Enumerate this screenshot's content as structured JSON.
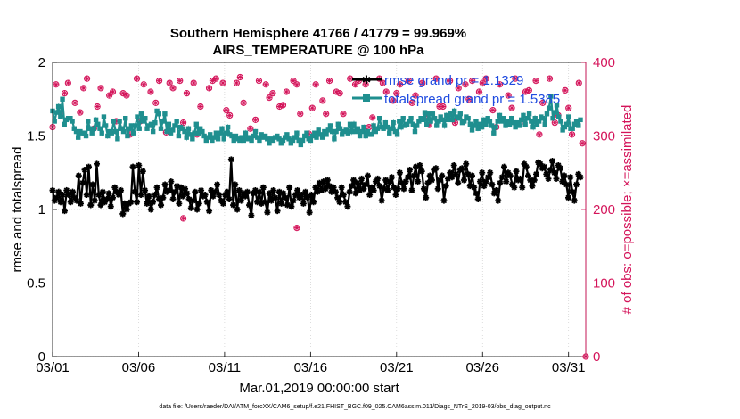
{
  "chart_data": {
    "type": "line",
    "title": "Southern Hemisphere 41766 / 41779 = 99.969%",
    "subtitle": "AIRS_TEMPERATURE @ 100 hPa",
    "xlabel": "Mar.01,2019 00:00:00 start",
    "ylabel_left": "rmse and totalspread",
    "ylabel_right": "# of obs: o=possible; ×=assimilated",
    "footnote": "data file: /Users/raeder/DAI/ATM_forcXX/CAM6_setup/f.e21.FHIST_BGC.f09_025.CAM6assim.011/Diags_NTrS_2019-03/obs_diag_output.nc",
    "x_tick_labels": [
      "03/01",
      "03/06",
      "03/11",
      "03/16",
      "03/21",
      "03/26",
      "03/31"
    ],
    "x_tick_days": [
      1,
      6,
      11,
      16,
      21,
      26,
      31
    ],
    "xlim_days": [
      1,
      32
    ],
    "ylim_left": [
      0,
      2
    ],
    "y_ticks_left": [
      "0",
      "0.5",
      "1",
      "1.5",
      "2"
    ],
    "ylim_right": [
      0,
      400
    ],
    "y_ticks_right": [
      "0",
      "100",
      "200",
      "300",
      "400"
    ],
    "grid": true,
    "legend_position": "top-right",
    "colors": {
      "rmse": "#000000",
      "totalspread": "#1f8f8f",
      "obs": "#d4145a",
      "legend_text": "#1f4be0",
      "right_axis": "#d4145a"
    },
    "series": [
      {
        "name": "rmse grand pr = 1.1329",
        "axis": "left",
        "values": [
          1.13,
          1.06,
          1.08,
          1.12,
          1.05,
          1.1,
          0.99,
          1.13,
          1.1,
          1.05,
          1.12,
          1.08,
          1.06,
          1.23,
          1.04,
          1.18,
          1.27,
          1.1,
          1.29,
          1.03,
          1.17,
          1.06,
          1.31,
          1.1,
          1.03,
          1.12,
          1.05,
          1.07,
          1.11,
          1.02,
          1.08,
          1.15,
          1.12,
          1.1,
          1.13,
          0.97,
          1.04,
          1.0,
          1.04,
          1.05,
          1.29,
          1.12,
          1.05,
          1.3,
          1.1,
          1.26,
          1.13,
          1.04,
          1.09,
          1.0,
          1.05,
          1.1,
          1.15,
          1.07,
          1.03,
          1.08,
          1.17,
          1.12,
          1.13,
          1.19,
          1.07,
          1.12,
          1.16,
          1.04,
          1.15,
          1.09,
          1.14,
          1.11,
          1.07,
          1.01,
          1.06,
          1.12,
          1.0,
          1.04,
          1.13,
          1.09,
          1.1,
          1.05,
          0.99,
          1.13,
          1.09,
          1.12,
          1.17,
          1.1,
          1.06,
          1.04,
          1.1,
          1.12,
          1.07,
          1.34,
          1.03,
          1.17,
          1.0,
          1.13,
          1.06,
          1.11,
          1.09,
          1.12,
          1.03,
          0.96,
          1.11,
          1.13,
          1.05,
          1.12,
          1.04,
          1.15,
          1.05,
          0.98,
          1.11,
          1.06,
          1.13,
          1.08,
          0.99,
          1.12,
          1.04,
          1.11,
          1.08,
          1.03,
          1.15,
          1.02,
          1.06,
          1.1,
          1.13,
          1.08,
          1.1,
          1.04,
          1.12,
          1.08,
          0.98,
          1.1,
          1.05,
          1.15,
          1.12,
          1.18,
          1.13,
          1.19,
          1.14,
          1.2,
          1.16,
          1.12,
          1.15,
          1.12,
          1.08,
          1.05,
          1.15,
          1.1,
          1.05,
          1.02,
          1.12,
          1.16,
          1.2,
          1.11,
          1.18,
          1.13,
          1.21,
          1.14,
          1.17,
          1.23,
          1.1,
          1.15,
          1.13,
          1.19,
          1.21,
          1.16,
          1.06,
          1.14,
          1.2,
          1.13,
          1.19,
          1.22,
          1.15,
          1.1,
          1.14,
          1.25,
          1.18,
          1.14,
          1.19,
          1.22,
          1.27,
          1.13,
          1.23,
          1.29,
          1.19,
          1.3,
          1.26,
          1.14,
          1.08,
          1.18,
          1.23,
          1.2,
          1.27,
          1.28,
          1.14,
          1.2,
          1.23,
          1.06,
          1.16,
          1.21,
          1.25,
          1.22,
          1.3,
          1.24,
          1.18,
          1.27,
          1.28,
          1.2,
          1.31,
          1.24,
          1.16,
          1.23,
          1.15,
          1.11,
          1.07,
          1.19,
          1.25,
          1.16,
          1.19,
          1.22,
          1.25,
          1.17,
          1.11,
          1.13,
          1.06,
          1.18,
          1.22,
          1.29,
          1.19,
          1.25,
          1.23,
          1.17,
          1.15,
          1.26,
          1.2,
          1.21,
          1.15,
          1.31,
          1.29,
          1.23,
          1.2,
          1.16,
          1.2,
          1.24,
          1.32,
          1.31,
          1.28,
          1.29,
          1.24,
          1.21,
          1.27,
          1.33,
          1.25,
          1.21,
          1.3,
          1.28,
          1.19,
          1.23,
          1.17,
          1.08,
          1.22,
          1.12,
          1.06,
          1.17,
          1.24,
          1.22
        ]
      },
      {
        "name": "totalspread grand pr = 1.5385",
        "axis": "left",
        "values": [
          1.67,
          1.6,
          1.66,
          1.7,
          1.63,
          1.75,
          1.58,
          1.61,
          1.62,
          1.62,
          1.6,
          1.55,
          1.53,
          1.49,
          1.53,
          1.52,
          1.52,
          1.5,
          1.6,
          1.55,
          1.52,
          1.55,
          1.61,
          1.58,
          1.55,
          1.52,
          1.63,
          1.57,
          1.5,
          1.53,
          1.52,
          1.6,
          1.53,
          1.48,
          1.6,
          1.55,
          1.53,
          1.62,
          1.5,
          1.55,
          1.57,
          1.52,
          1.57,
          1.63,
          1.55,
          1.65,
          1.6,
          1.62,
          1.55,
          1.57,
          1.58,
          1.53,
          1.59,
          1.67,
          1.65,
          1.55,
          1.6,
          1.65,
          1.53,
          1.58,
          1.52,
          1.54,
          1.57,
          1.6,
          1.5,
          1.56,
          1.55,
          1.53,
          1.49,
          1.55,
          1.51,
          1.48,
          1.52,
          1.58,
          1.52,
          1.55,
          1.53,
          1.5,
          1.47,
          1.49,
          1.51,
          1.47,
          1.49,
          1.52,
          1.48,
          1.52,
          1.55,
          1.48,
          1.52,
          1.56,
          1.51,
          1.5,
          1.47,
          1.5,
          1.48,
          1.47,
          1.49,
          1.47,
          1.52,
          1.48,
          1.49,
          1.47,
          1.5,
          1.53,
          1.49,
          1.47,
          1.51,
          1.49,
          1.5,
          1.48,
          1.45,
          1.48,
          1.47,
          1.49,
          1.5,
          1.48,
          1.45,
          1.47,
          1.49,
          1.51,
          1.48,
          1.45,
          1.47,
          1.49,
          1.52,
          1.47,
          1.44,
          1.47,
          1.5,
          1.52,
          1.48,
          1.47,
          1.5,
          1.52,
          1.49,
          1.54,
          1.51,
          1.49,
          1.53,
          1.51,
          1.54,
          1.57,
          1.53,
          1.48,
          1.53,
          1.58,
          1.55,
          1.51,
          1.53,
          1.54,
          1.52,
          1.58,
          1.53,
          1.58,
          1.53,
          1.55,
          1.5,
          1.53,
          1.56,
          1.5,
          1.53,
          1.51,
          1.51,
          1.57,
          1.53,
          1.55,
          1.62,
          1.56,
          1.55,
          1.59,
          1.56,
          1.52,
          1.55,
          1.59,
          1.53,
          1.51,
          1.6,
          1.56,
          1.62,
          1.57,
          1.58,
          1.6,
          1.62,
          1.58,
          1.53,
          1.57,
          1.6,
          1.62,
          1.61,
          1.66,
          1.58,
          1.65,
          1.6,
          1.65,
          1.62,
          1.57,
          1.6,
          1.63,
          1.61,
          1.57,
          1.64,
          1.61,
          1.65,
          1.61,
          1.67,
          1.63,
          1.62,
          1.65,
          1.59,
          1.6,
          1.63,
          1.62,
          1.58,
          1.54,
          1.57,
          1.6,
          1.55,
          1.58,
          1.56,
          1.61,
          1.58,
          1.62,
          1.6,
          1.57,
          1.52,
          1.56,
          1.6,
          1.64,
          1.6,
          1.62,
          1.57,
          1.6,
          1.58,
          1.62,
          1.59,
          1.56,
          1.59,
          1.57,
          1.61,
          1.64,
          1.58,
          1.62,
          1.65,
          1.6,
          1.56,
          1.62,
          1.58,
          1.6,
          1.63,
          1.62,
          1.58,
          1.65,
          1.69,
          1.77,
          1.62,
          1.66,
          1.71,
          1.63,
          1.6,
          1.54,
          1.56,
          1.58,
          1.63,
          1.55,
          1.55,
          1.58,
          1.6,
          1.57,
          1.61
        ]
      },
      {
        "name": "# of obs (possible / assimilated)",
        "axis": "right",
        "days": [
          1.2,
          1.5,
          1.9,
          2.3,
          2.6,
          3.0,
          3.4,
          3.8,
          4.3,
          4.7,
          5.1,
          5.5,
          5.9,
          6.3,
          6.7,
          7.2,
          7.6,
          8.0,
          8.4,
          8.8,
          9.2,
          9.6,
          10.1,
          10.5,
          10.9,
          11.3,
          11.7,
          12.1,
          12.5,
          13.0,
          13.4,
          13.8,
          14.2,
          14.6,
          15.0,
          15.4,
          15.9,
          16.3,
          16.7,
          17.1,
          17.5,
          17.9,
          18.3,
          18.8,
          19.2,
          19.6,
          20.0,
          20.4,
          20.8,
          21.2,
          21.7,
          22.1,
          22.5,
          22.9,
          23.3,
          23.7,
          24.1,
          24.6,
          25.0,
          25.4,
          25.8,
          26.2,
          26.6,
          27.0,
          27.5,
          27.9,
          28.3,
          28.7,
          29.1,
          29.5,
          29.9,
          30.4,
          30.8,
          31.2,
          31.6,
          1.0,
          1.7,
          2.8,
          3.6,
          4.5,
          5.3,
          6.1,
          7.0,
          7.8,
          8.6,
          9.4,
          10.3,
          11.1,
          11.9,
          12.8,
          13.6,
          14.4,
          15.2,
          16.1,
          16.9,
          17.7,
          18.6,
          19.4,
          20.2,
          21.0,
          21.9,
          22.7,
          23.5,
          24.4,
          25.2,
          26.0,
          26.8,
          27.7,
          28.5,
          29.3,
          30.2,
          31.0,
          31.8
        ],
        "values": [
          370,
          330,
          372,
          345,
          332,
          378,
          310,
          365,
          355,
          320,
          358,
          302,
          378,
          370,
          360,
          375,
          305,
          365,
          375,
          358,
          372,
          340,
          365,
          378,
          372,
          328,
          372,
          345,
          310,
          375,
          370,
          358,
          340,
          360,
          375,
          330,
          303,
          370,
          348,
          375,
          360,
          330,
          378,
          375,
          370,
          325,
          378,
          360,
          348,
          370,
          375,
          355,
          372,
          315,
          378,
          340,
          375,
          365,
          370,
          375,
          360,
          378,
          335,
          370,
          355,
          378,
          320,
          362,
          375,
          345,
          378,
          328,
          362,
          302,
          372,
          312,
          358,
          365,
          340,
          360,
          355,
          320,
          345,
          372,
          318,
          302,
          375,
          335,
          380,
          322,
          352,
          342,
          370,
          338,
          330,
          358,
          370,
          312,
          372,
          358,
          345,
          328,
          340,
          318,
          350,
          372,
          312,
          338,
          360,
          302,
          318,
          338,
          290
        ]
      }
    ],
    "outlier_obs": [
      {
        "day": 8.6,
        "value": 188
      },
      {
        "day": 15.2,
        "value": 175
      },
      {
        "day": 32.0,
        "value": 0
      }
    ]
  }
}
